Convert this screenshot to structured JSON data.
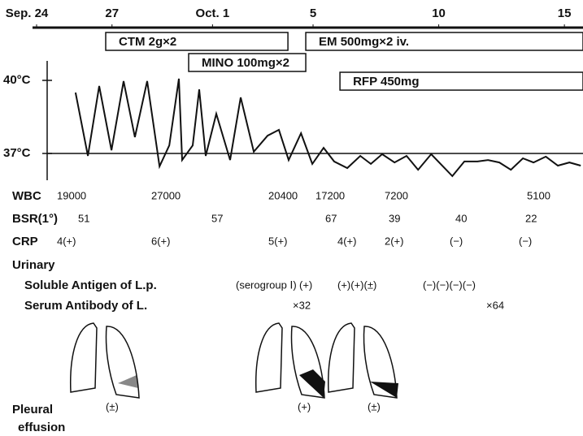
{
  "chart_data": {
    "type": "line",
    "xlim": [
      0,
      21.74
    ],
    "xticks": [
      {
        "value": 0,
        "label": "Sep. 24"
      },
      {
        "value": 3,
        "label": "27"
      },
      {
        "value": 7,
        "label": "Oct. 1"
      },
      {
        "value": 11,
        "label": "5"
      },
      {
        "value": 16,
        "label": "10"
      },
      {
        "value": 21,
        "label": "15"
      }
    ],
    "ylim": [
      35.7,
      42.2
    ],
    "yticks": [
      {
        "value": 37,
        "label": "37°C"
      },
      {
        "value": 40,
        "label": "40°C"
      }
    ],
    "color": "#111111",
    "drugs": [
      {
        "label": "CTM 2g×2",
        "start": 2.75,
        "end": 10.0,
        "row": 0
      },
      {
        "label": "MINO 100mg×2",
        "start": 6.05,
        "end": 10.71,
        "row": 1
      },
      {
        "label": "EM 500mg×2 iv.",
        "start": 10.71,
        "end": 21.74,
        "row": 0
      },
      {
        "label": "RFP 450mg",
        "start": 12.07,
        "end": 21.74,
        "row": 2
      }
    ],
    "x": [
      1.55,
      2.04,
      2.49,
      2.98,
      3.46,
      3.91,
      4.4,
      4.89,
      5.28,
      5.66,
      5.79,
      6.21,
      6.47,
      6.73,
      7.15,
      7.7,
      8.12,
      8.64,
      9.19,
      9.64,
      10.03,
      10.52,
      10.97,
      11.42,
      11.84,
      12.36,
      12.88,
      13.3,
      13.75,
      14.24,
      14.72,
      15.18,
      15.7,
      16.54,
      17.02,
      17.54,
      17.96,
      18.41,
      18.87,
      19.35,
      19.77,
      20.26,
      20.74,
      21.2,
      21.65
    ],
    "values": [
      39.5,
      36.9,
      39.77,
      37.13,
      39.97,
      37.67,
      39.97,
      36.47,
      37.33,
      40.07,
      36.73,
      37.33,
      39.63,
      36.9,
      38.63,
      36.73,
      39.3,
      37.07,
      37.73,
      37.97,
      36.73,
      37.83,
      36.57,
      37.23,
      36.67,
      36.4,
      36.9,
      36.57,
      36.97,
      36.63,
      36.9,
      36.33,
      36.97,
      36.07,
      36.67,
      36.67,
      36.73,
      36.63,
      36.33,
      36.8,
      36.63,
      36.87,
      36.5,
      36.63,
      36.5
    ]
  },
  "lab_rows": [
    {
      "label": "WBC",
      "values": [
        "19000",
        "27000",
        "20400",
        "17200",
        "7200",
        "5100"
      ]
    },
    {
      "label": "BSR(1°)",
      "values": [
        "51",
        "57",
        "67",
        "39",
        "40",
        "22"
      ]
    },
    {
      "label": "CRP",
      "values": [
        "4(+)",
        "6(+)",
        "5(+)",
        "4(+)",
        "2(+)",
        "(−)",
        "(−)"
      ]
    }
  ],
  "urinary": {
    "label": "Urinary",
    "antigen": {
      "label": "Soluble Antigen of L.p.",
      "note": "(serogroup Ⅰ)",
      "values": [
        "(+)",
        "(+)(+)(±)",
        "(−)(−)(−)(−)"
      ]
    },
    "antibody": {
      "label": "Serum Antibody of L.",
      "values": [
        "×32",
        "×64"
      ]
    }
  },
  "pleural": {
    "label_1": "Pleural",
    "label_2": "effusion",
    "values": [
      "(±)",
      "(+)",
      "(±)"
    ]
  }
}
